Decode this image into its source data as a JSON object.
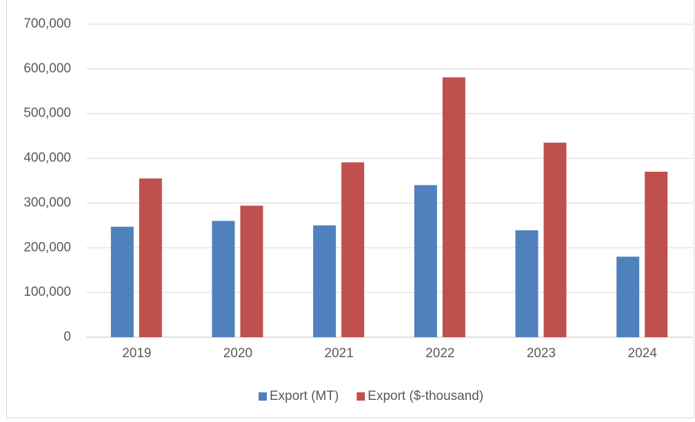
{
  "chart_data": {
    "type": "bar",
    "categories": [
      "2019",
      "2020",
      "2021",
      "2022",
      "2023",
      "2024"
    ],
    "series": [
      {
        "name": "Export (MT)",
        "color": "#4f81bd",
        "values": [
          247000,
          260000,
          250000,
          340000,
          239000,
          180000
        ]
      },
      {
        "name": "Export ($-thousand)",
        "color": "#c0504d",
        "values": [
          355000,
          294000,
          391000,
          581000,
          435000,
          370000
        ]
      }
    ],
    "ylim": [
      0,
      700000
    ],
    "yticks": [
      0,
      {
        "value": 100000,
        "label": "100,000"
      },
      {
        "value": 200000,
        "label": "200,000"
      },
      {
        "value": 300000,
        "label": "300,000"
      },
      {
        "value": 400000,
        "label": "400,000"
      },
      {
        "value": 500000,
        "label": "500,000"
      },
      {
        "value": 600000,
        "label": "600,000"
      },
      {
        "value": 700000,
        "label": "700,000"
      }
    ],
    "grid": true,
    "legend": "bottom"
  }
}
